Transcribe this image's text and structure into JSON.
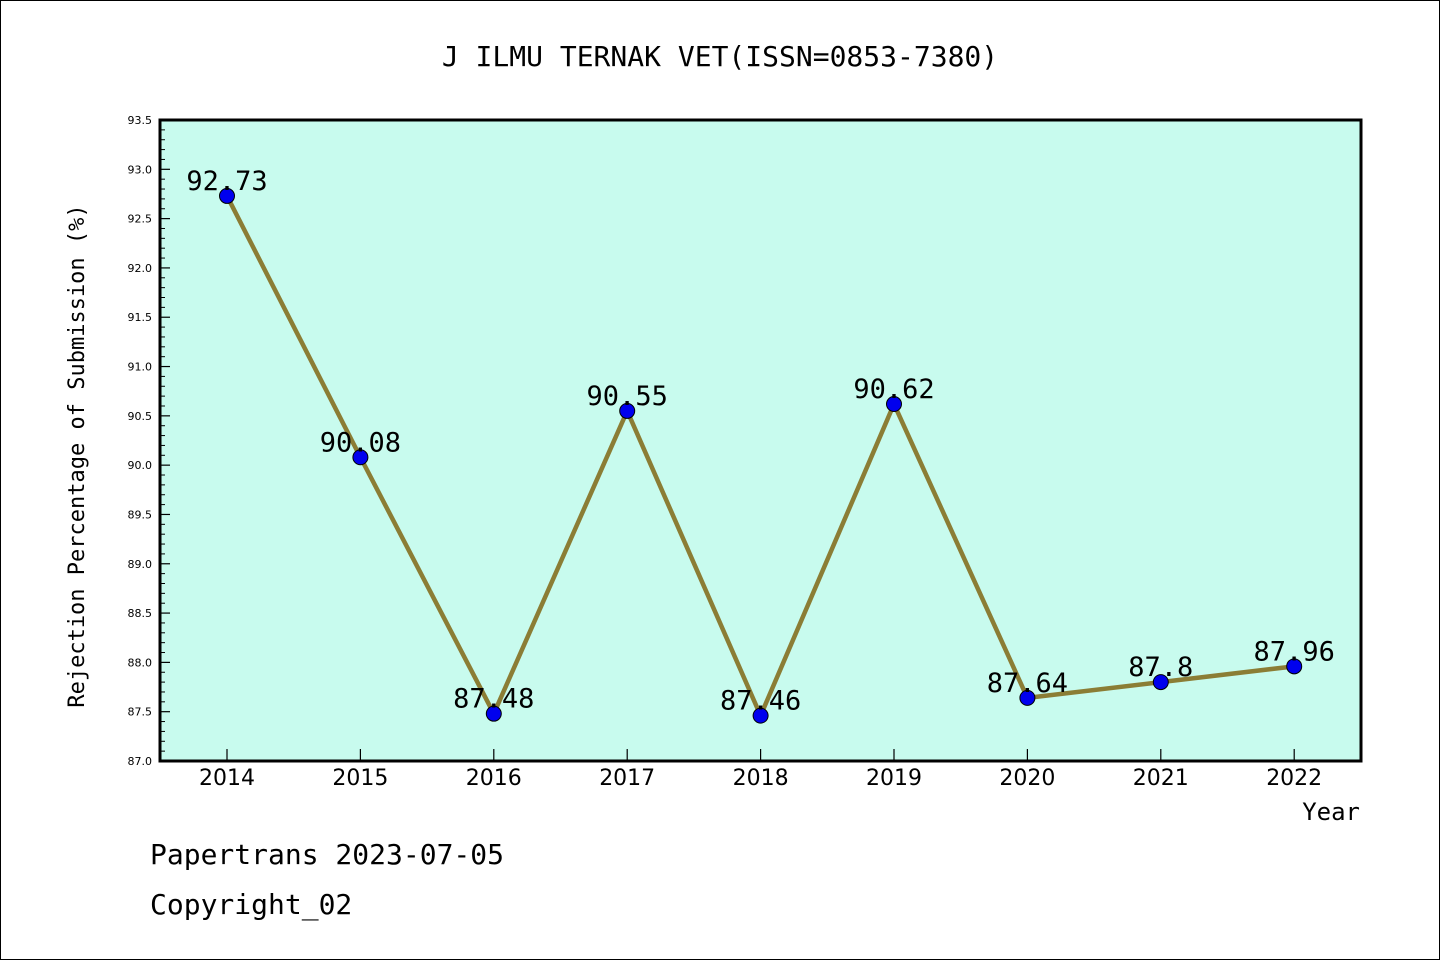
{
  "chart_data": {
    "type": "line",
    "title": "J ILMU TERNAK VET(ISSN=0853-7380)",
    "xlabel": "Year",
    "ylabel": "Rejection Percentage of Submission (%)",
    "x": [
      "2014",
      "2015",
      "2016",
      "2017",
      "2018",
      "2019",
      "2020",
      "2021",
      "2022"
    ],
    "series": [
      {
        "values": [
          92.73,
          90.08,
          87.48,
          90.55,
          87.46,
          90.62,
          87.64,
          87.8,
          87.96
        ],
        "labels": [
          "92.73",
          "90.08",
          "87.48",
          "90.55",
          "87.46",
          "90.62",
          "87.64",
          "87.8",
          "87.96"
        ]
      }
    ],
    "ylim": [
      87.0,
      93.5
    ],
    "yticks": [
      "87.0",
      "87.5",
      "88.0",
      "88.5",
      "89.0",
      "89.5",
      "90.0",
      "90.5",
      "91.0",
      "91.5",
      "92.0",
      "92.5",
      "93.0",
      "93.5"
    ],
    "grid": false,
    "colors": {
      "plot_bg": "#c8fbee",
      "line": "#8b7d35",
      "marker": "#0000ee"
    }
  },
  "footer": {
    "line1": "Papertrans 2023-07-05",
    "line2": "Copyright_02"
  }
}
